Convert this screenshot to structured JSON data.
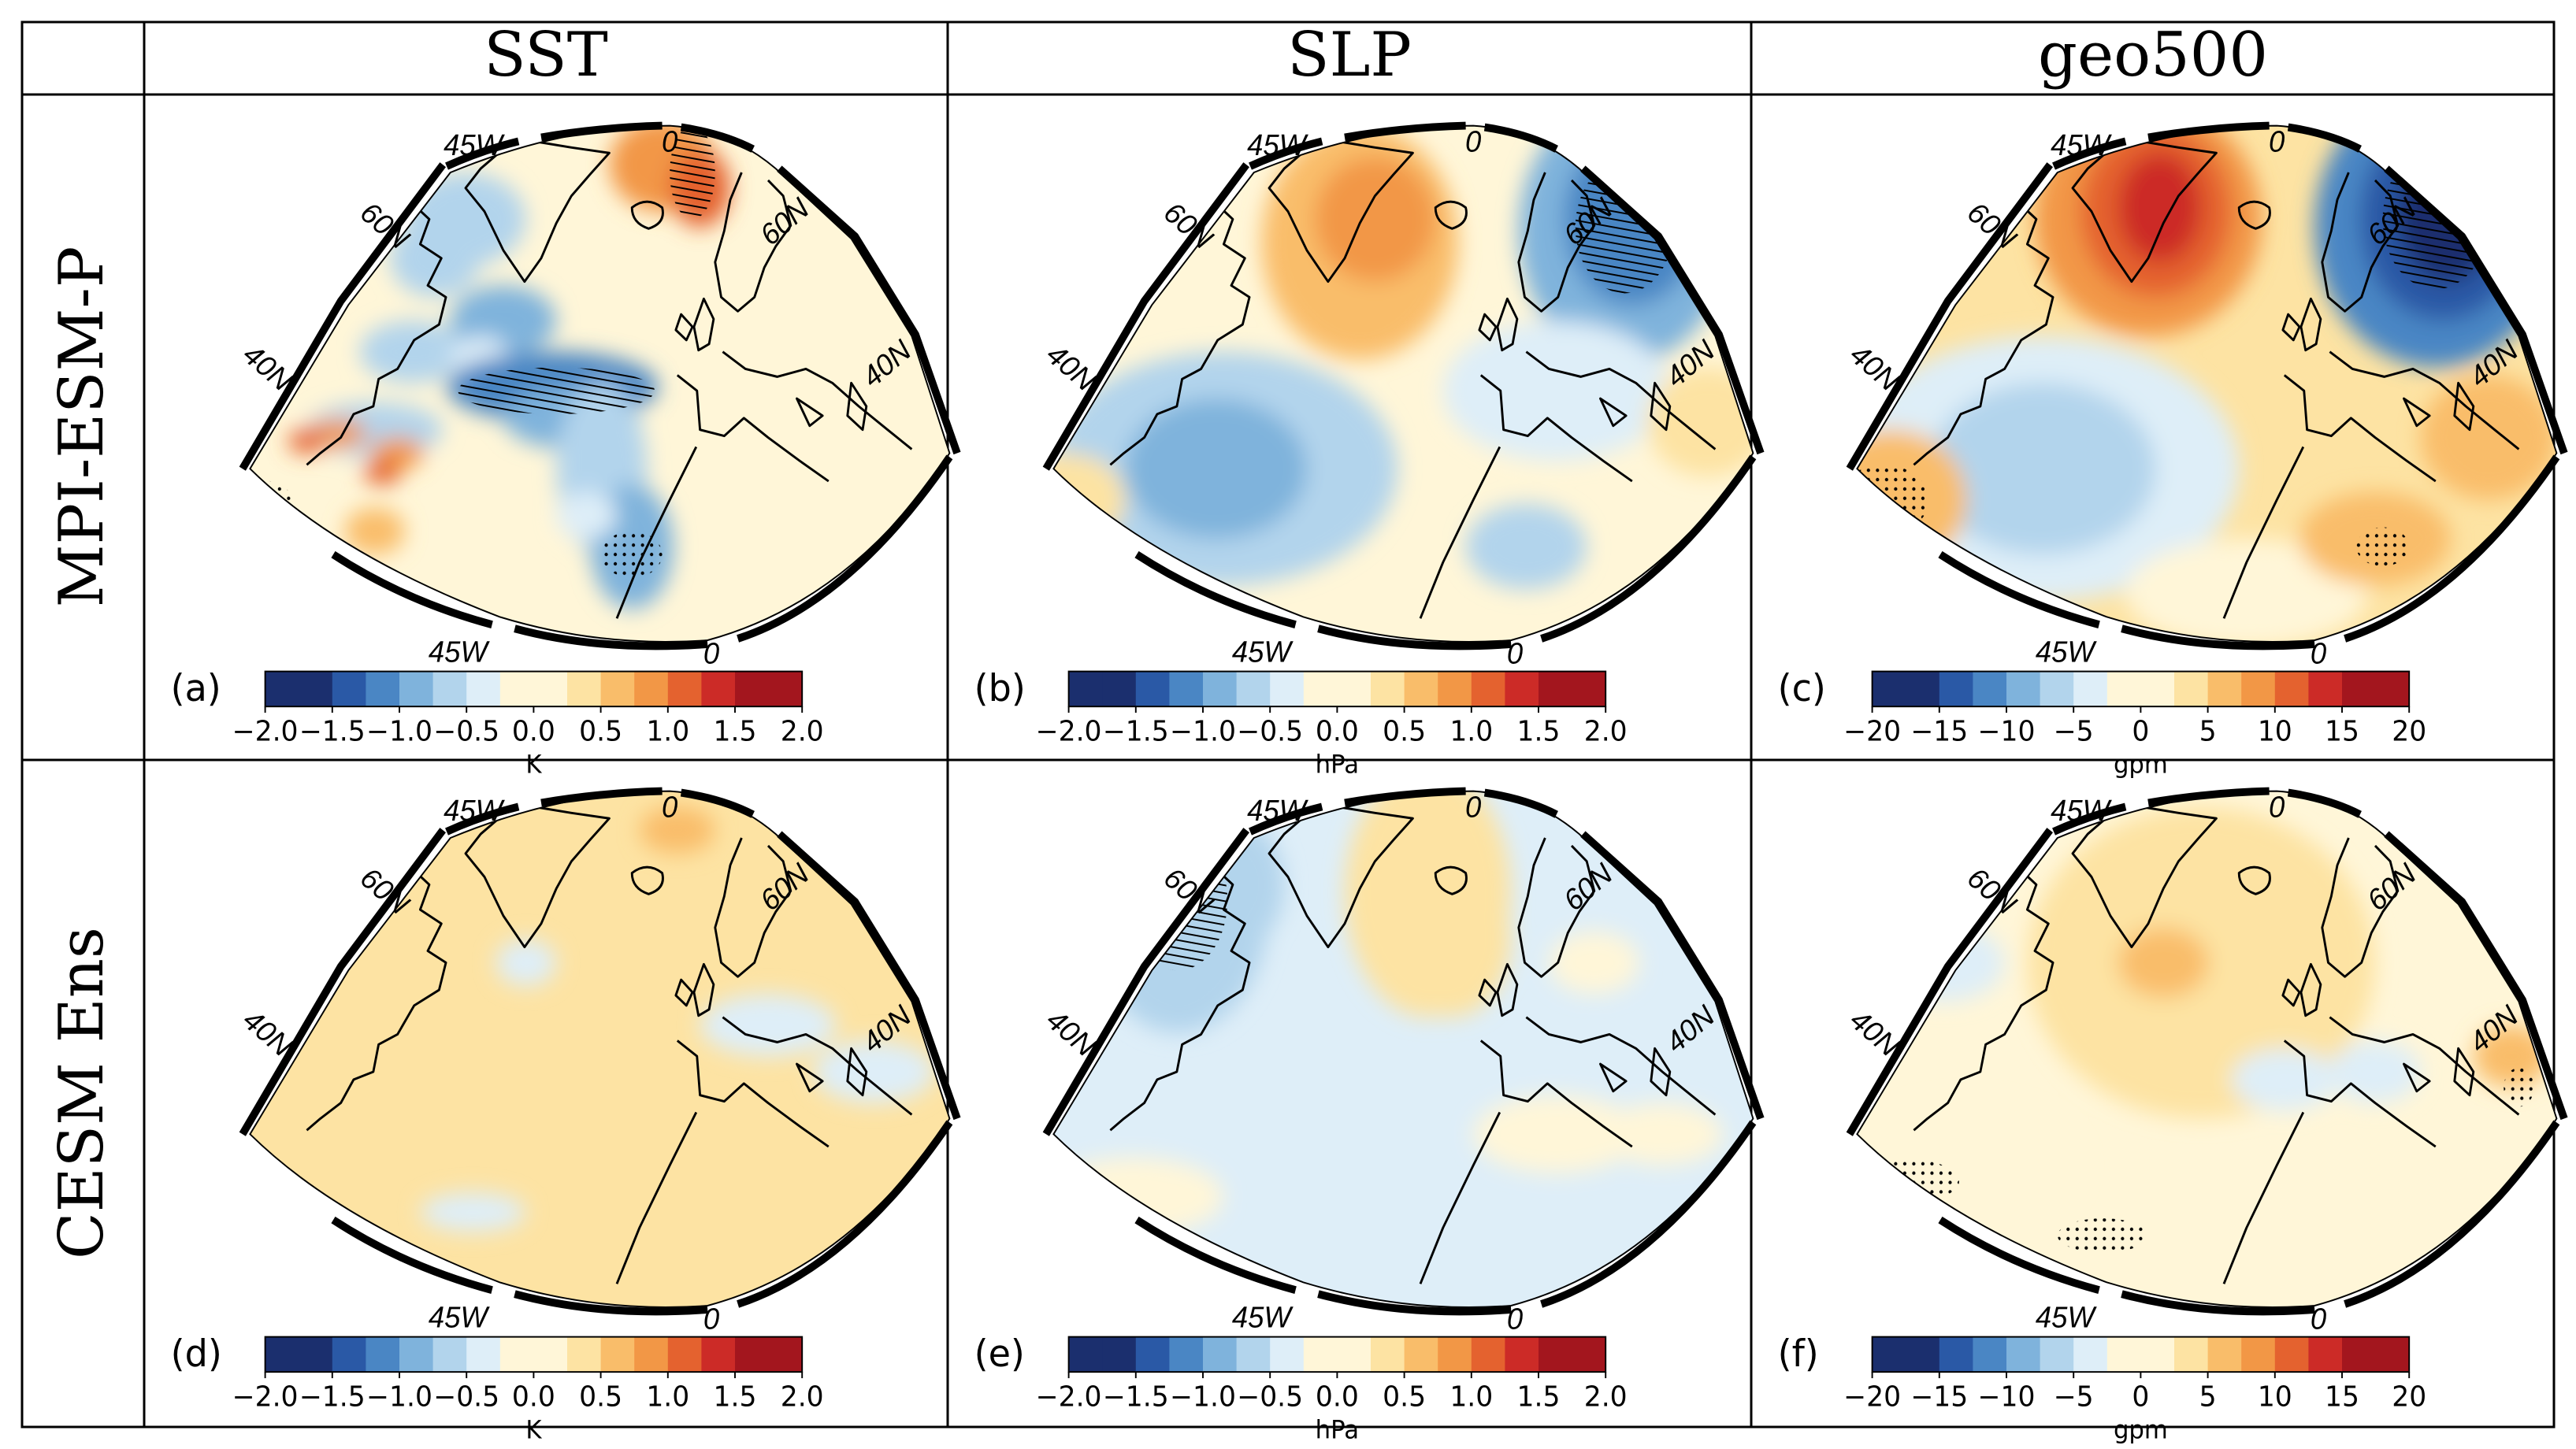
{
  "columns": [
    {
      "id": "sst",
      "label": "SST"
    },
    {
      "id": "slp",
      "label": "SLP"
    },
    {
      "id": "geo",
      "label": "geo500"
    }
  ],
  "rows": [
    {
      "id": "mpi",
      "label": "MPI-ESM-P"
    },
    {
      "id": "cesm",
      "label": "CESM Ens"
    }
  ],
  "panels": [
    {
      "tag": "(a)",
      "variable": "SST",
      "model": "MPI-ESM-P",
      "unit": "K",
      "ticks": [
        "−2.0",
        "−1.5",
        "−1.0",
        "−0.5",
        "0.0",
        "0.5",
        "1.0",
        "1.5",
        "2.0"
      ]
    },
    {
      "tag": "(b)",
      "variable": "SLP",
      "model": "MPI-ESM-P",
      "unit": "hPa",
      "ticks": [
        "−2.0",
        "−1.5",
        "−1.0",
        "−0.5",
        "0.0",
        "0.5",
        "1.0",
        "1.5",
        "2.0"
      ]
    },
    {
      "tag": "(c)",
      "variable": "geo500",
      "model": "MPI-ESM-P",
      "unit": "gpm",
      "ticks": [
        "−20",
        "−15",
        "−10",
        "−5",
        "0",
        "5",
        "10",
        "15",
        "20"
      ]
    },
    {
      "tag": "(d)",
      "variable": "SST",
      "model": "CESM Ens",
      "unit": "K",
      "ticks": [
        "−2.0",
        "−1.5",
        "−1.0",
        "−0.5",
        "0.0",
        "0.5",
        "1.0",
        "1.5",
        "2.0"
      ]
    },
    {
      "tag": "(e)",
      "variable": "SLP",
      "model": "CESM Ens",
      "unit": "hPa",
      "ticks": [
        "−2.0",
        "−1.5",
        "−1.0",
        "−0.5",
        "0.0",
        "0.5",
        "1.0",
        "1.5",
        "2.0"
      ]
    },
    {
      "tag": "(f)",
      "variable": "geo500",
      "model": "CESM Ens",
      "unit": "gpm",
      "ticks": [
        "−20",
        "−15",
        "−10",
        "−5",
        "0",
        "5",
        "10",
        "15",
        "20"
      ]
    }
  ],
  "map_labels": {
    "lon_top_left": "45W",
    "lon_top_right": "0",
    "lat_60_left": "60N",
    "lat_40_left": "40N",
    "lat_60_right": "60N",
    "lat_40_right": "40N",
    "lon_bottom_left": "45W",
    "lon_bottom_right": "0"
  },
  "colors": {
    "palette": [
      "#1b2f6e",
      "#2a59a6",
      "#4a86c4",
      "#7fb3dc",
      "#b2d4ec",
      "#deeef8",
      "#fff6d8",
      "#fde3a3",
      "#f9bd6a",
      "#f29746",
      "#e4622f",
      "#cc2b27",
      "#a3161e"
    ],
    "map_background": "#fefcf0"
  }
}
